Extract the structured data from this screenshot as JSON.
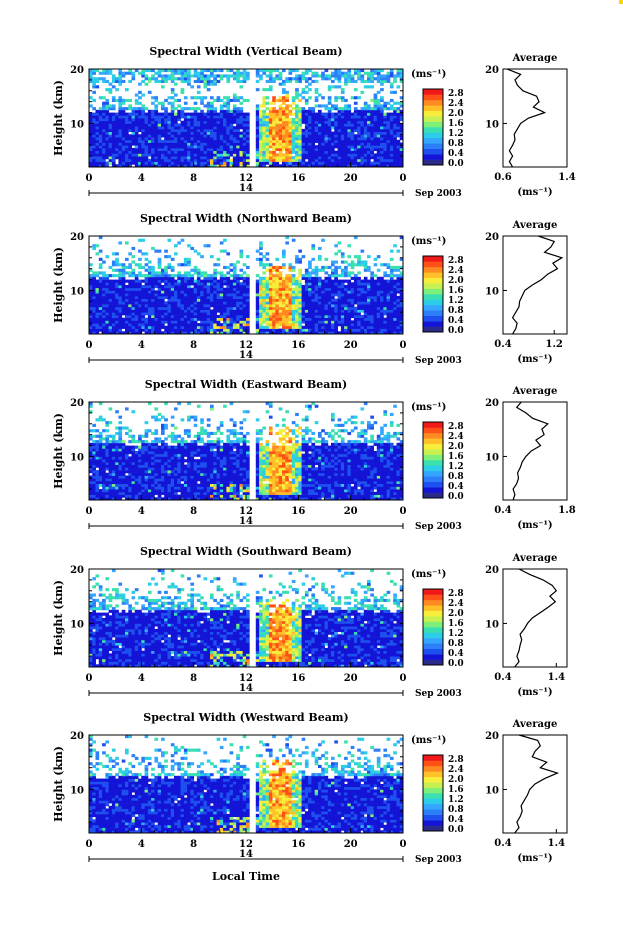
{
  "x_axis": {
    "ticks": [
      "0",
      "4",
      "8",
      "12",
      "16",
      "20",
      "0"
    ],
    "date_day": "14",
    "date_month_year": "Sep 2003",
    "label": "Local Time"
  },
  "y_axis": {
    "label": "Height (km)",
    "ticks": [
      "20",
      "10"
    ]
  },
  "colorbar": {
    "unit_label": "(ms⁻¹)",
    "ticks": [
      "2.8",
      "2.4",
      "2.0",
      "1.6",
      "1.2",
      "0.8",
      "0.4",
      "0.0"
    ],
    "colors": [
      "#2a2a8a",
      "#1414d6",
      "#1e50f0",
      "#2c7ff8",
      "#34a6ff",
      "#2ccde6",
      "#3ae0b0",
      "#7ef07a",
      "#c8f050",
      "#f7ee3c",
      "#ffc028",
      "#ff8a22",
      "#ff5018",
      "#f01818"
    ]
  },
  "average_title": "Average",
  "chart_data": [
    {
      "type": "heatmap",
      "title": "Spectral Width (Vertical Beam)",
      "xlabel": "Local Time",
      "ylabel": "Height (km)",
      "x_range": [
        0,
        24
      ],
      "y_range": [
        2,
        20
      ],
      "color_range": [
        0.0,
        3.0
      ],
      "color_unit": "(ms⁻¹)",
      "data_gap_hour": 12.3,
      "high_width_region": {
        "hours": [
          13,
          16
        ],
        "heights_km": [
          3,
          15
        ],
        "value": 2.6
      },
      "average_profile": {
        "xlabel": "(ms⁻¹)",
        "x_ticks": [
          "0.6",
          "1.4"
        ],
        "xlim": [
          0.6,
          1.4
        ],
        "y_ticks": [
          "20",
          "10"
        ],
        "heights_km": [
          2,
          3,
          4,
          5,
          6,
          7,
          8,
          9,
          10,
          11,
          12,
          13,
          14,
          15,
          16,
          17,
          18,
          19,
          20
        ],
        "values": [
          0.72,
          0.68,
          0.72,
          0.68,
          0.72,
          0.75,
          0.74,
          0.78,
          0.82,
          0.92,
          1.12,
          0.98,
          1.05,
          1.02,
          0.85,
          0.78,
          0.75,
          0.82,
          0.65
        ]
      }
    },
    {
      "type": "heatmap",
      "title": "Spectral Width (Northward Beam)",
      "xlabel": "Local Time",
      "ylabel": "Height (km)",
      "x_range": [
        0,
        24
      ],
      "y_range": [
        2,
        20
      ],
      "color_range": [
        0.0,
        3.0
      ],
      "color_unit": "(ms⁻¹)",
      "data_gap_hour": 12.3,
      "high_width_region": {
        "hours": [
          13,
          16
        ],
        "heights_km": [
          3,
          14
        ],
        "value": 2.6
      },
      "average_profile": {
        "xlabel": "(ms⁻¹)",
        "x_ticks": [
          "0.4",
          "1.2"
        ],
        "xlim": [
          0.4,
          1.4
        ],
        "y_ticks": [
          "20",
          "10"
        ],
        "heights_km": [
          2,
          3,
          4,
          5,
          6,
          7,
          8,
          9,
          10,
          11,
          12,
          13,
          14,
          15,
          16,
          17,
          18,
          19,
          20
        ],
        "values": [
          0.55,
          0.6,
          0.62,
          0.55,
          0.6,
          0.65,
          0.66,
          0.7,
          0.74,
          0.86,
          1.0,
          1.1,
          1.25,
          1.18,
          1.32,
          1.05,
          1.15,
          1.2,
          0.95
        ]
      }
    },
    {
      "type": "heatmap",
      "title": "Spectral Width (Eastward Beam)",
      "xlabel": "Local Time",
      "ylabel": "Height (km)",
      "x_range": [
        0,
        24
      ],
      "y_range": [
        2,
        20
      ],
      "color_range": [
        0.0,
        3.0
      ],
      "color_unit": "(ms⁻¹)",
      "data_gap_hour": 12.3,
      "high_width_region": {
        "hours": [
          13,
          16
        ],
        "heights_km": [
          3,
          15
        ],
        "value": 2.6
      },
      "average_profile": {
        "xlabel": "(ms⁻¹)",
        "x_ticks": [
          "0.4",
          "1.8"
        ],
        "xlim": [
          0.4,
          1.8
        ],
        "y_ticks": [
          "20",
          "10"
        ],
        "heights_km": [
          2,
          3,
          4,
          5,
          6,
          7,
          8,
          9,
          10,
          11,
          12,
          13,
          14,
          15,
          16,
          17,
          18,
          19,
          20
        ],
        "values": [
          0.62,
          0.66,
          0.62,
          0.7,
          0.74,
          0.72,
          0.78,
          0.82,
          0.9,
          1.02,
          1.22,
          1.12,
          1.3,
          1.25,
          1.38,
          1.05,
          0.9,
          0.7,
          0.8
        ]
      }
    },
    {
      "type": "heatmap",
      "title": "Spectral Width (Southward Beam)",
      "xlabel": "Local Time",
      "ylabel": "Height (km)",
      "x_range": [
        0,
        24
      ],
      "y_range": [
        2,
        20
      ],
      "color_range": [
        0.0,
        3.0
      ],
      "color_unit": "(ms⁻¹)",
      "data_gap_hour": 12.3,
      "high_width_region": {
        "hours": [
          13,
          16
        ],
        "heights_km": [
          3,
          14
        ],
        "value": 2.6
      },
      "average_profile": {
        "xlabel": "(ms⁻¹)",
        "x_ticks": [
          "0.4",
          "1.4"
        ],
        "xlim": [
          0.4,
          1.6
        ],
        "y_ticks": [
          "20",
          "10"
        ],
        "heights_km": [
          2,
          3,
          4,
          5,
          6,
          7,
          8,
          9,
          10,
          11,
          12,
          13,
          14,
          15,
          16,
          17,
          18,
          19,
          20
        ],
        "values": [
          0.62,
          0.7,
          0.66,
          0.7,
          0.72,
          0.75,
          0.72,
          0.8,
          0.86,
          0.95,
          1.1,
          1.25,
          1.38,
          1.28,
          1.4,
          1.32,
          1.15,
          0.9,
          0.7
        ]
      }
    },
    {
      "type": "heatmap",
      "title": "Spectral Width (Westward Beam)",
      "xlabel": "Local Time",
      "ylabel": "Height (km)",
      "x_range": [
        0,
        24
      ],
      "y_range": [
        2,
        20
      ],
      "color_range": [
        0.0,
        3.0
      ],
      "color_unit": "(ms⁻¹)",
      "data_gap_hour": 12.3,
      "high_width_region": {
        "hours": [
          13,
          16
        ],
        "heights_km": [
          3,
          15
        ],
        "value": 2.6
      },
      "average_profile": {
        "xlabel": "(ms⁻¹)",
        "x_ticks": [
          "0.4",
          "1.4"
        ],
        "xlim": [
          0.4,
          1.6
        ],
        "y_ticks": [
          "20",
          "10"
        ],
        "heights_km": [
          2,
          3,
          4,
          5,
          6,
          7,
          8,
          9,
          10,
          11,
          12,
          13,
          14,
          15,
          16,
          17,
          18,
          19,
          20
        ],
        "values": [
          0.62,
          0.7,
          0.66,
          0.72,
          0.76,
          0.74,
          0.8,
          0.86,
          0.9,
          1.0,
          1.18,
          1.42,
          1.1,
          1.22,
          0.95,
          1.0,
          1.1,
          1.05,
          0.7
        ]
      }
    }
  ]
}
